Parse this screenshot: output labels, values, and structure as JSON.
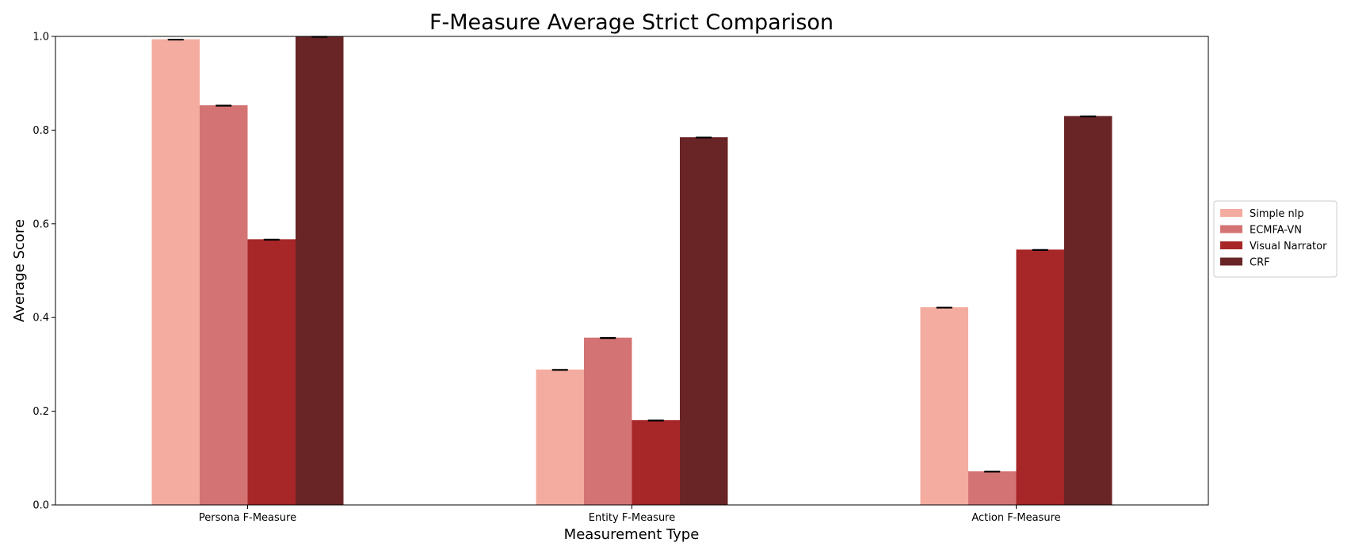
{
  "chart_data": {
    "type": "bar",
    "title": "F-Measure Average Strict Comparison",
    "xlabel": "Measurement Type",
    "ylabel": "Average Score",
    "ylim": [
      0,
      1.0
    ],
    "yticks": [
      "0.0",
      "0.2",
      "0.4",
      "0.6",
      "0.8",
      "1.0"
    ],
    "categories": [
      "Persona F-Measure",
      "Entity F-Measure",
      "Action F-Measure"
    ],
    "series": [
      {
        "name": "Simple nlp",
        "color": "#f4aca0",
        "values": [
          0.994,
          0.289,
          0.422
        ]
      },
      {
        "name": "ECMFA-VN",
        "color": "#d47373",
        "values": [
          0.853,
          0.357,
          0.072
        ]
      },
      {
        "name": "Visual Narrator",
        "color": "#a72627",
        "values": [
          0.567,
          0.181,
          0.545
        ]
      },
      {
        "name": "CRF",
        "color": "#692426",
        "values": [
          1.0,
          0.785,
          0.83
        ]
      }
    ],
    "error_bars": true,
    "grid": false,
    "legend_position": "center-right"
  }
}
